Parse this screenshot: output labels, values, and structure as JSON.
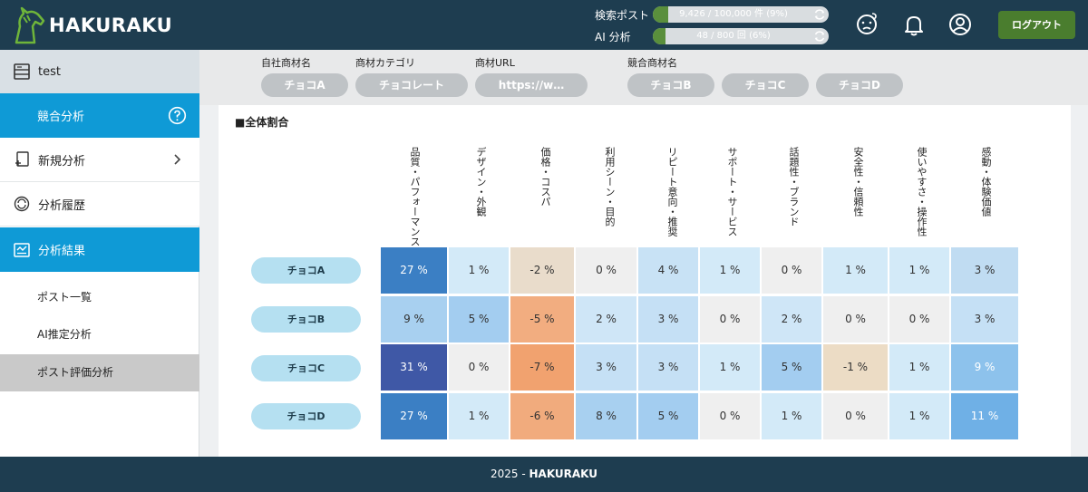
{
  "header": {
    "logo_text": "HAKURAKU",
    "usage": [
      {
        "label": "検索ポスト",
        "text": "9,426 / 100,000 件 (9%)",
        "progress": 0.09
      },
      {
        "label": "AI 分析",
        "text": "48 / 800 回 (6%)",
        "progress": 0.06
      }
    ],
    "logout_label": "ログアウト"
  },
  "sidebar": {
    "user_label": "test",
    "items": [
      {
        "label": "競合分析"
      },
      {
        "label": "新規分析"
      },
      {
        "label": "分析履歴"
      },
      {
        "label": "分析結果"
      }
    ],
    "subitems": [
      {
        "label": "ポスト一覧"
      },
      {
        "label": "AI推定分析"
      },
      {
        "label": "ポスト評価分析"
      }
    ]
  },
  "filters": {
    "own_product_label": "自社商材名",
    "own_product_value": "チョコA",
    "category_label": "商材カテゴリ",
    "category_value": "チョコレート",
    "url_label": "商材URL",
    "url_value": "https://w…",
    "competitor_label": "競合商材名",
    "competitors": [
      "チョコB",
      "チョコC",
      "チョコD"
    ]
  },
  "matrix": {
    "title": "■全体割合",
    "columns": [
      "品質・パフォーマンス",
      "デザイン・外観",
      "価格・コスパ",
      "利用シーン・目的",
      "リピート意向・推奨",
      "サポート・サービス",
      "話題性・ブランド",
      "安全性・信頼性",
      "使いやすさ・操作性",
      "感動・体験価値"
    ],
    "rows": [
      {
        "name": "チョコA",
        "cells": [
          "27 %",
          "1 %",
          "-2 %",
          "0 %",
          "4 %",
          "1 %",
          "0 %",
          "1 %",
          "1 %",
          "3 %"
        ]
      },
      {
        "name": "チョコB",
        "cells": [
          "9 %",
          "5 %",
          "-5 %",
          "2 %",
          "3 %",
          "0 %",
          "2 %",
          "0 %",
          "0 %",
          "3 %"
        ]
      },
      {
        "name": "チョコC",
        "cells": [
          "31 %",
          "0 %",
          "-7 %",
          "3 %",
          "3 %",
          "1 %",
          "5 %",
          "-1 %",
          "1 %",
          "9 %"
        ]
      },
      {
        "name": "チョコD",
        "cells": [
          "27 %",
          "1 %",
          "-6 %",
          "8 %",
          "5 %",
          "0 %",
          "1 %",
          "0 %",
          "1 %",
          "11 %"
        ]
      }
    ],
    "colors": [
      [
        "#3b7fc4",
        "#d3eaf8",
        "#e9dccb",
        "#efefef",
        "#c8e2f5",
        "#d3eaf8",
        "#efefef",
        "#d3eaf8",
        "#d3eaf8",
        "#c0dcf2"
      ],
      [
        "#a8d0f0",
        "#a3cdf0",
        "#f2ad80",
        "#cfe6f7",
        "#c5e0f5",
        "#efefef",
        "#cfe6f7",
        "#efefef",
        "#efefef",
        "#c5e0f5"
      ],
      [
        "#3f58a6",
        "#efefef",
        "#f1a26f",
        "#c5e0f5",
        "#c5e0f5",
        "#d3eaf8",
        "#a3cdf0",
        "#ecdcc5",
        "#d3eaf8",
        "#8dc2ec"
      ],
      [
        "#3b7fc4",
        "#d3eaf8",
        "#f1ab7d",
        "#a8d0f0",
        "#a3cdf0",
        "#efefef",
        "#d3eaf8",
        "#efefef",
        "#d3eaf8",
        "#6fb0e6"
      ]
    ],
    "text_colors": [
      [
        "#ffffff",
        "#333333",
        "#333333",
        "#333333",
        "#333333",
        "#333333",
        "#333333",
        "#333333",
        "#333333",
        "#333333"
      ],
      [
        "#333333",
        "#333333",
        "#333333",
        "#333333",
        "#333333",
        "#333333",
        "#333333",
        "#333333",
        "#333333",
        "#333333"
      ],
      [
        "#ffffff",
        "#333333",
        "#333333",
        "#333333",
        "#333333",
        "#333333",
        "#333333",
        "#333333",
        "#333333",
        "#ffffff"
      ],
      [
        "#ffffff",
        "#333333",
        "#333333",
        "#333333",
        "#333333",
        "#333333",
        "#333333",
        "#333333",
        "#333333",
        "#ffffff"
      ]
    ]
  },
  "footer": {
    "year": "2025 - ",
    "brand": "HAKURAKU"
  }
}
